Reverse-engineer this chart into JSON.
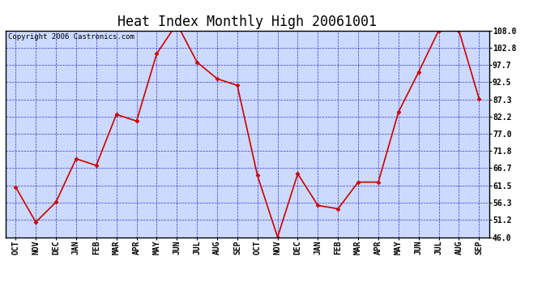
{
  "title": "Heat Index Monthly High 20061001",
  "copyright": "Copyright 2006 Castronics.com",
  "categories": [
    "OCT",
    "NOV",
    "DEC",
    "JAN",
    "FEB",
    "MAR",
    "APR",
    "MAY",
    "JUN",
    "JUL",
    "AUG",
    "SEP",
    "OCT",
    "NOV",
    "DEC",
    "JAN",
    "FEB",
    "MAR",
    "APR",
    "MAY",
    "JUN",
    "JUL",
    "AUG",
    "SEP"
  ],
  "values": [
    61.0,
    50.5,
    56.5,
    69.5,
    67.5,
    82.8,
    80.8,
    101.0,
    110.0,
    98.5,
    93.5,
    91.5,
    64.5,
    46.0,
    65.0,
    55.5,
    54.5,
    62.5,
    62.5,
    83.5,
    95.5,
    108.0,
    108.0,
    87.5
  ],
  "ylim_min": 46.0,
  "ylim_max": 108.0,
  "yticks": [
    108.0,
    102.8,
    97.7,
    92.5,
    87.3,
    82.2,
    77.0,
    71.8,
    66.7,
    61.5,
    56.3,
    51.2,
    46.0
  ],
  "ytick_labels": [
    "108.0",
    "102.8",
    "97.7",
    "92.5",
    "87.3",
    "82.2",
    "77.0",
    "71.8",
    "66.7",
    "61.5",
    "56.3",
    "51.2",
    "46.0"
  ],
  "line_color": "#cc0000",
  "marker_color": "#cc0000",
  "bg_color": "#ccdaff",
  "border_color": "#000000",
  "grid_color": "#2222cc",
  "title_fontsize": 12,
  "tick_fontsize": 7,
  "copyright_fontsize": 6.5
}
